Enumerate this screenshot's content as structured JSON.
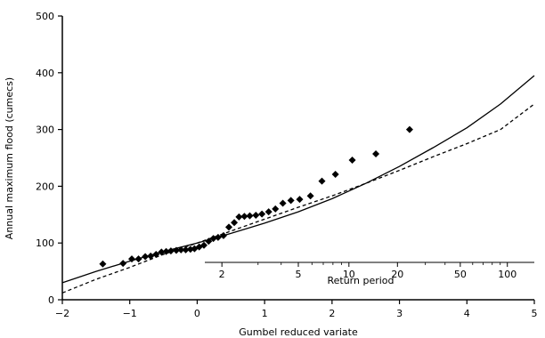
{
  "chart_data": {
    "type": "scatter",
    "xlabel": "Gumbel reduced variate",
    "ylabel": "Annual maximum flood (cumecs)",
    "xlim": [
      -2,
      5
    ],
    "ylim": [
      0,
      500
    ],
    "x_ticks": [
      -2,
      -1,
      0,
      1,
      2,
      3,
      4,
      5
    ],
    "y_ticks": [
      0,
      100,
      200,
      300,
      400,
      500
    ],
    "secondary_axis": {
      "label": "Return period",
      "ticks": [
        2,
        5,
        10,
        20,
        50,
        100
      ],
      "placement": "inside plot, lower right"
    },
    "grid": false,
    "series": [
      {
        "type": "scatter",
        "marker": "diamond",
        "points": [
          [
            -1.4,
            63
          ],
          [
            -1.1,
            64
          ],
          [
            -0.97,
            72
          ],
          [
            -0.87,
            72
          ],
          [
            -0.77,
            76
          ],
          [
            -0.69,
            77
          ],
          [
            -0.61,
            80
          ],
          [
            -0.53,
            84
          ],
          [
            -0.46,
            85
          ],
          [
            -0.39,
            86
          ],
          [
            -0.31,
            87
          ],
          [
            -0.24,
            88
          ],
          [
            -0.17,
            88
          ],
          [
            -0.1,
            89
          ],
          [
            -0.04,
            90
          ],
          [
            0.03,
            93
          ],
          [
            0.1,
            96
          ],
          [
            0.17,
            103
          ],
          [
            0.24,
            108
          ],
          [
            0.31,
            110
          ],
          [
            0.39,
            113
          ],
          [
            0.47,
            128
          ],
          [
            0.55,
            136
          ],
          [
            0.62,
            146
          ],
          [
            0.7,
            147
          ],
          [
            0.78,
            148
          ],
          [
            0.87,
            149
          ],
          [
            0.96,
            151
          ],
          [
            1.06,
            155
          ],
          [
            1.16,
            160
          ],
          [
            1.27,
            170
          ],
          [
            1.39,
            175
          ],
          [
            1.52,
            177
          ],
          [
            1.68,
            183
          ],
          [
            1.85,
            209
          ],
          [
            2.05,
            221
          ],
          [
            2.3,
            246
          ],
          [
            2.65,
            257
          ],
          [
            3.15,
            300
          ]
        ]
      },
      {
        "type": "line",
        "style": "solid",
        "points": [
          [
            -2,
            30
          ],
          [
            -1.5,
            50
          ],
          [
            -1,
            68
          ],
          [
            -0.5,
            85
          ],
          [
            0,
            100
          ],
          [
            0.5,
            117
          ],
          [
            1,
            135
          ],
          [
            1.5,
            155
          ],
          [
            2,
            178
          ],
          [
            2.5,
            205
          ],
          [
            3,
            235
          ],
          [
            3.5,
            268
          ],
          [
            4,
            303
          ],
          [
            4.5,
            345
          ],
          [
            5,
            395
          ]
        ]
      },
      {
        "type": "line",
        "style": "dashed",
        "points": [
          [
            -2,
            12
          ],
          [
            -1.5,
            36
          ],
          [
            -1,
            57
          ],
          [
            -0.5,
            80
          ],
          [
            0,
            100
          ],
          [
            0.5,
            121
          ],
          [
            1,
            142
          ],
          [
            1.5,
            163
          ],
          [
            2,
            183
          ],
          [
            2.5,
            205
          ],
          [
            3,
            228
          ],
          [
            3.5,
            252
          ],
          [
            4,
            275
          ],
          [
            4.5,
            300
          ],
          [
            5,
            345
          ]
        ]
      }
    ]
  },
  "colors": {
    "ink": "#000000",
    "background": "#ffffff"
  }
}
